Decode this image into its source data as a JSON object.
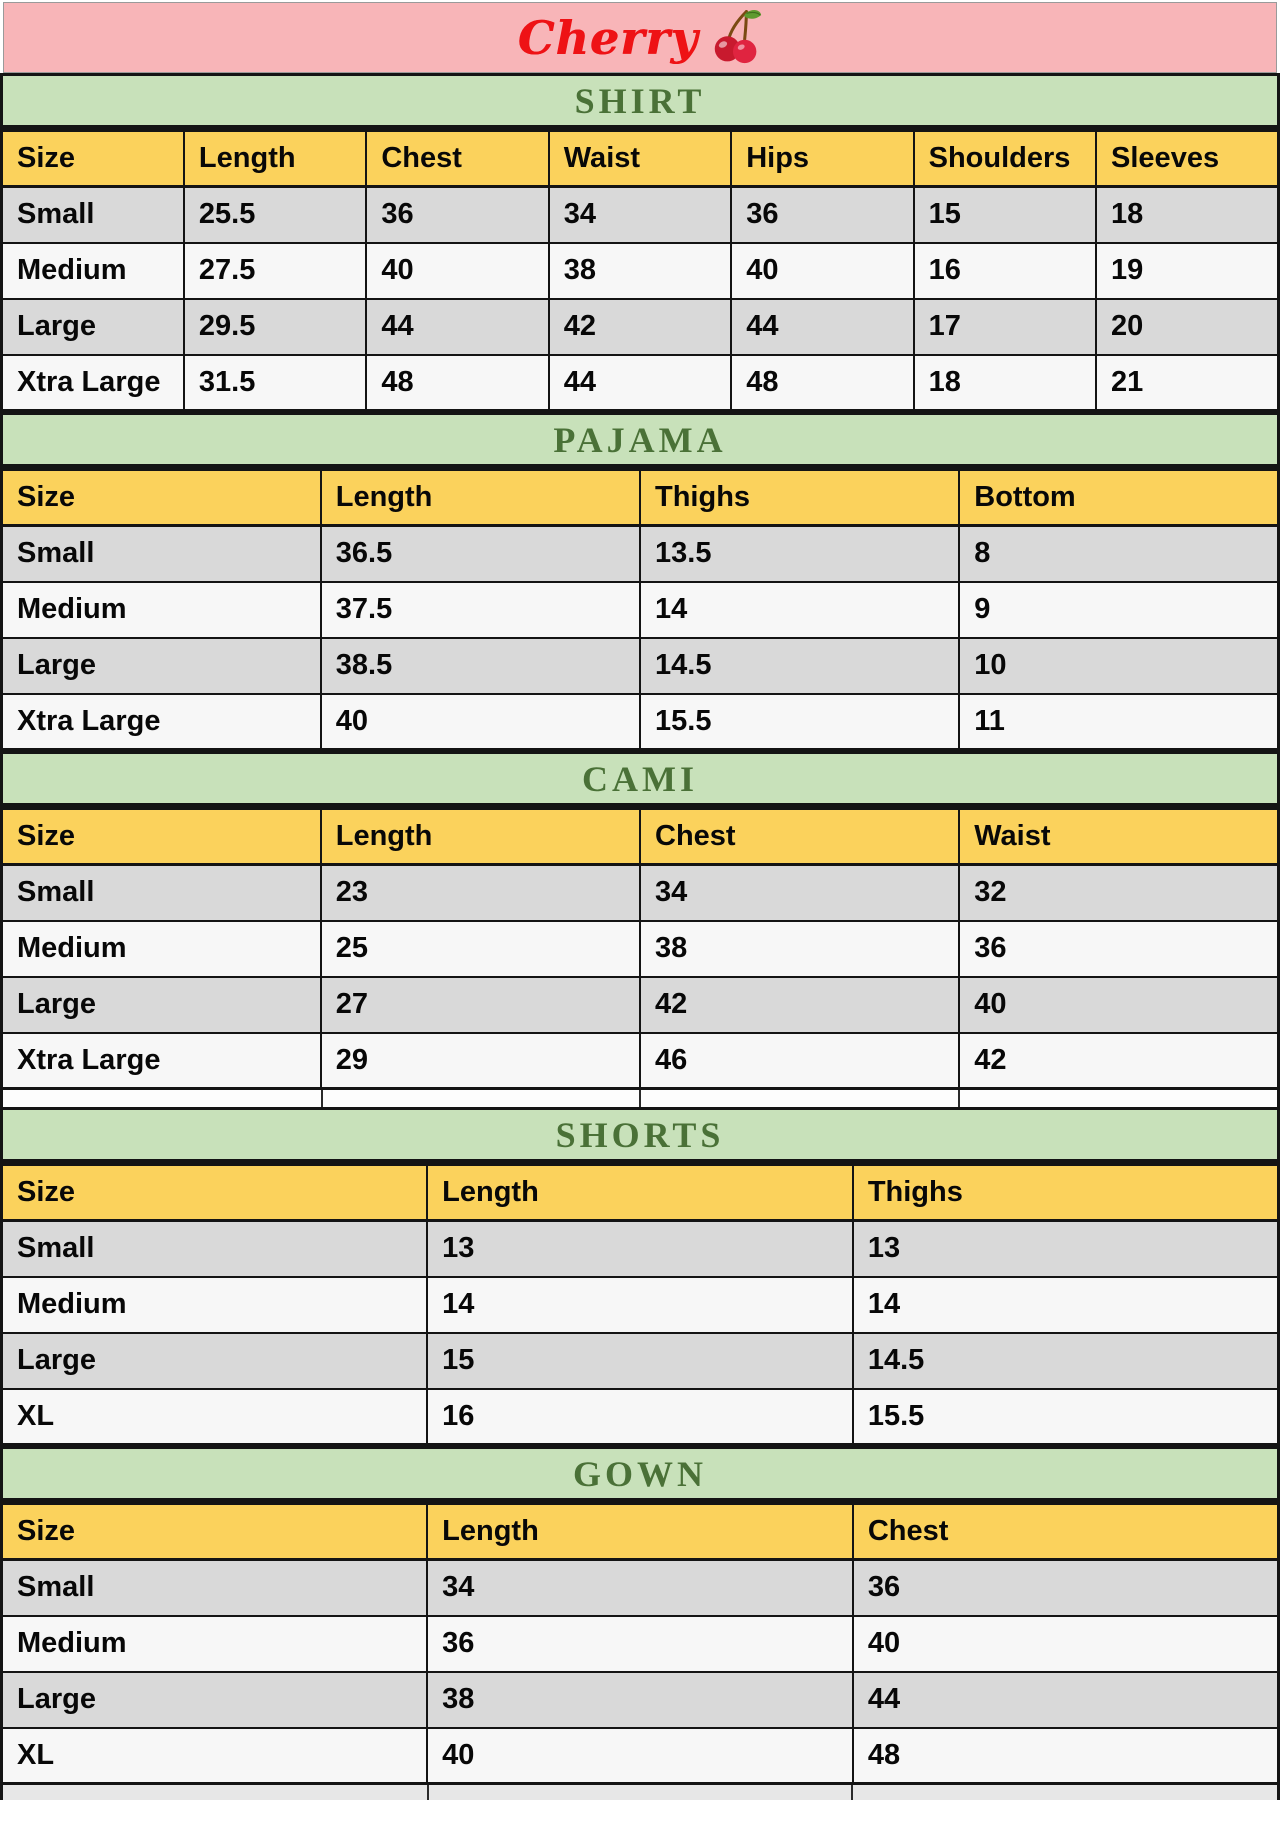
{
  "page": {
    "brand": "Cherry",
    "brand_icon": "cherries-icon"
  },
  "colors": {
    "brand_bar_pink": "#f8b5b8",
    "brand_text_red": "#ee1215",
    "section_band_green": "#c8e1ba",
    "section_title_green": "#4a7137",
    "header_row_yellow": "#fbd25c",
    "row_stripe_gray": "#d9d9d9",
    "row_stripe_white": "#f7f7f7",
    "table_border_black": "#141414"
  },
  "tables": [
    {
      "title": "SHIRT",
      "columns": [
        "Size",
        "Length",
        "Chest",
        "Waist",
        "Hips",
        "Shoulders",
        "Sleeves"
      ],
      "rows": [
        [
          "Small",
          "25.5",
          "36",
          "34",
          "36",
          "15",
          "18"
        ],
        [
          "Medium",
          "27.5",
          "40",
          "38",
          "40",
          "16",
          "19"
        ],
        [
          "Large",
          "29.5",
          "44",
          "42",
          "44",
          "17",
          "20"
        ],
        [
          "Xtra Large",
          "31.5",
          "48",
          "44",
          "48",
          "18",
          "21"
        ]
      ]
    },
    {
      "title": "PAJAMA",
      "columns": [
        "Size",
        "Length",
        "Thighs",
        "Bottom"
      ],
      "rows": [
        [
          "Small",
          "36.5",
          "13.5",
          "8"
        ],
        [
          "Medium",
          "37.5",
          "14",
          "9"
        ],
        [
          "Large",
          "38.5",
          "14.5",
          "10"
        ],
        [
          "Xtra Large",
          "40",
          "15.5",
          "11"
        ]
      ]
    },
    {
      "title": "CAMI",
      "columns": [
        "Size",
        "Length",
        "Chest",
        "Waist"
      ],
      "rows": [
        [
          "Small",
          "23",
          "34",
          "32"
        ],
        [
          "Medium",
          "25",
          "38",
          "36"
        ],
        [
          "Large",
          "27",
          "42",
          "40"
        ],
        [
          "Xtra Large",
          "29",
          "46",
          "42"
        ]
      ]
    },
    {
      "title": "SHORTS",
      "columns": [
        "Size",
        "Length",
        "Thighs"
      ],
      "rows": [
        [
          "Small",
          "13",
          "13"
        ],
        [
          "Medium",
          "14",
          "14"
        ],
        [
          "Large",
          "15",
          "14.5"
        ],
        [
          "XL",
          "16",
          "15.5"
        ]
      ]
    },
    {
      "title": "GOWN",
      "columns": [
        "Size",
        "Length",
        "Chest"
      ],
      "rows": [
        [
          "Small",
          "34",
          "36"
        ],
        [
          "Medium",
          "36",
          "40"
        ],
        [
          "Large",
          "38",
          "44"
        ],
        [
          "XL",
          "40",
          "48"
        ]
      ]
    }
  ]
}
